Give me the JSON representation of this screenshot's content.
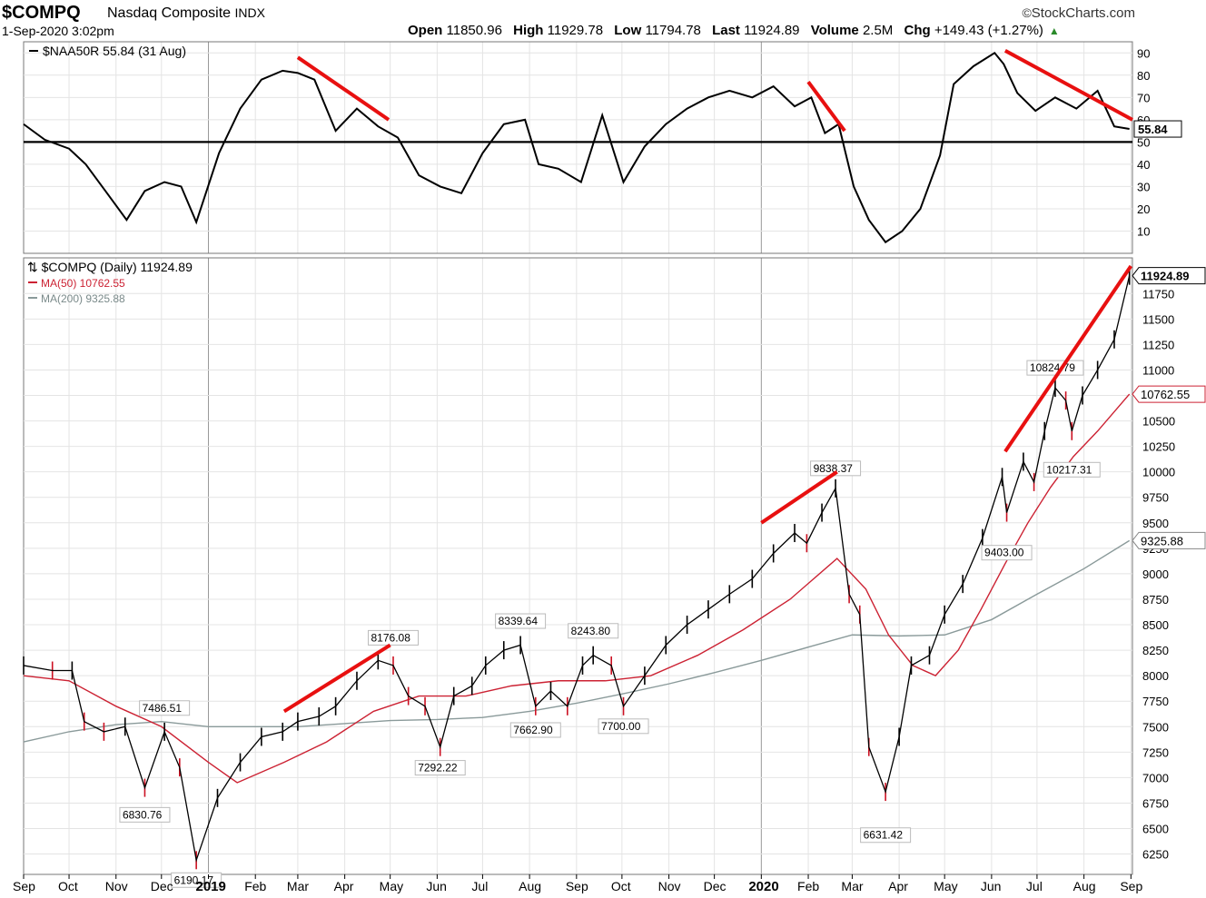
{
  "header": {
    "symbol": "$COMPQ",
    "name": "Nasdaq Composite",
    "exchange": "INDX",
    "timestamp": "1-Sep-2020 3:02pm",
    "brand": "StockCharts.com",
    "open_label": "Open",
    "open": "11850.96",
    "high_label": "High",
    "high": "11929.78",
    "low_label": "Low",
    "low": "11794.78",
    "last_label": "Last",
    "last": "11924.89",
    "volume_label": "Volume",
    "volume": "2.5M",
    "chg_label": "Chg",
    "chg": "+149.43 (+1.27%)"
  },
  "chart_data": [
    {
      "type": "line",
      "title": "$NAA50R 55.84 (31 Aug)",
      "ylim": [
        0,
        95
      ],
      "yticks": [
        10,
        20,
        30,
        40,
        50,
        60,
        70,
        80,
        90
      ],
      "reference_line": 50,
      "last_value": "55.84",
      "grid": true,
      "x": [
        "2018-09-01",
        "2018-09-15",
        "2018-10-01",
        "2018-10-12",
        "2018-10-25",
        "2018-11-08",
        "2018-11-20",
        "2018-12-03",
        "2018-12-14",
        "2018-12-24",
        "2019-01-08",
        "2019-01-22",
        "2019-02-05",
        "2019-02-19",
        "2019-03-01",
        "2019-03-12",
        "2019-03-26",
        "2019-04-09",
        "2019-04-23",
        "2019-05-06",
        "2019-05-20",
        "2019-06-03",
        "2019-06-17",
        "2019-07-01",
        "2019-07-15",
        "2019-07-29",
        "2019-08-07",
        "2019-08-20",
        "2019-09-04",
        "2019-09-18",
        "2019-10-02",
        "2019-10-16",
        "2019-10-30",
        "2019-11-13",
        "2019-11-27",
        "2019-12-11",
        "2019-12-26",
        "2020-01-09",
        "2020-01-23",
        "2020-02-03",
        "2020-02-12",
        "2020-02-21",
        "2020-03-02",
        "2020-03-12",
        "2020-03-23",
        "2020-04-03",
        "2020-04-15",
        "2020-04-28",
        "2020-05-07",
        "2020-05-20",
        "2020-06-03",
        "2020-06-09",
        "2020-06-18",
        "2020-06-30",
        "2020-07-13",
        "2020-07-27",
        "2020-08-10",
        "2020-08-21",
        "2020-08-31"
      ],
      "values": [
        58,
        51,
        47,
        40,
        28,
        15,
        28,
        32,
        30,
        14,
        45,
        65,
        78,
        82,
        81,
        78,
        55,
        65,
        57,
        52,
        35,
        30,
        27,
        45,
        58,
        60,
        40,
        38,
        32,
        62,
        32,
        48,
        58,
        65,
        70,
        73,
        70,
        75,
        66,
        70,
        54,
        58,
        30,
        15,
        5,
        10,
        20,
        44,
        76,
        84,
        90,
        85,
        72,
        64,
        70,
        65,
        73,
        57,
        55.84
      ]
    },
    {
      "type": "line",
      "title": "$COMPQ (Daily) 11924.89",
      "ylim": [
        6050,
        12100
      ],
      "yticks": [
        6250,
        6500,
        6750,
        7000,
        7250,
        7500,
        7750,
        8000,
        8250,
        8500,
        8750,
        9000,
        9250,
        9500,
        9750,
        10000,
        10250,
        10500,
        10750,
        11000,
        11250,
        11500,
        11750
      ],
      "last_value": "11924.89",
      "grid": true,
      "x_month_labels": [
        "Sep",
        "Oct",
        "Nov",
        "Dec",
        "2019",
        "Feb",
        "Mar",
        "Apr",
        "May",
        "Jun",
        "Jul",
        "Aug",
        "Sep",
        "Oct",
        "Nov",
        "Dec",
        "2020",
        "Feb",
        "Mar",
        "Apr",
        "May",
        "Jun",
        "Jul",
        "Aug",
        "Sep"
      ],
      "series": [
        {
          "name": "$COMPQ",
          "color": "#000000",
          "x": [
            "2018-09-01",
            "2018-09-20",
            "2018-10-03",
            "2018-10-11",
            "2018-10-24",
            "2018-11-07",
            "2018-11-20",
            "2018-12-03",
            "2018-12-13",
            "2018-12-24",
            "2019-01-07",
            "2019-01-22",
            "2019-02-05",
            "2019-02-19",
            "2019-03-01",
            "2019-03-15",
            "2019-03-26",
            "2019-04-09",
            "2019-04-23",
            "2019-05-03",
            "2019-05-13",
            "2019-05-24",
            "2019-06-03",
            "2019-06-12",
            "2019-06-24",
            "2019-07-03",
            "2019-07-15",
            "2019-07-26",
            "2019-08-05",
            "2019-08-15",
            "2019-08-26",
            "2019-09-05",
            "2019-09-12",
            "2019-09-24",
            "2019-10-02",
            "2019-10-16",
            "2019-10-30",
            "2019-11-13",
            "2019-11-27",
            "2019-12-11",
            "2019-12-26",
            "2020-01-09",
            "2020-01-23",
            "2020-01-31",
            "2020-02-10",
            "2020-02-19",
            "2020-02-28",
            "2020-03-06",
            "2020-03-12",
            "2020-03-23",
            "2020-04-01",
            "2020-04-09",
            "2020-04-21",
            "2020-05-01",
            "2020-05-13",
            "2020-05-26",
            "2020-06-08",
            "2020-06-11",
            "2020-06-22",
            "2020-06-29",
            "2020-07-06",
            "2020-07-13",
            "2020-07-20",
            "2020-07-24",
            "2020-07-31",
            "2020-08-10",
            "2020-08-21",
            "2020-08-31"
          ],
          "values": [
            8100,
            8050,
            8050,
            7550,
            7450,
            7500,
            6900,
            7450,
            7100,
            6190,
            6800,
            7150,
            7400,
            7450,
            7550,
            7600,
            7700,
            7950,
            8150,
            8100,
            7800,
            7700,
            7300,
            7800,
            7900,
            8100,
            8250,
            8300,
            7700,
            7850,
            7700,
            8100,
            8200,
            8100,
            7700,
            8000,
            8300,
            8500,
            8650,
            8800,
            8950,
            9200,
            9400,
            9300,
            9600,
            9838.37,
            8800,
            8600,
            7300,
            6860,
            7400,
            8100,
            8200,
            8600,
            8900,
            9350,
            9950,
            9600,
            10100,
            9900,
            10400,
            10824.79,
            10700,
            10400,
            10750,
            11000,
            11300,
            11924.89
          ]
        },
        {
          "name": "MA(50) 10762.55",
          "color": "#cc2233",
          "x": [
            "2018-09-01",
            "2018-10-01",
            "2018-11-01",
            "2018-12-01",
            "2019-01-01",
            "2019-01-20",
            "2019-02-20",
            "2019-03-20",
            "2019-04-20",
            "2019-05-20",
            "2019-06-20",
            "2019-07-20",
            "2019-08-20",
            "2019-09-20",
            "2019-10-20",
            "2019-11-20",
            "2019-12-20",
            "2020-01-20",
            "2020-02-20",
            "2020-03-10",
            "2020-03-25",
            "2020-04-10",
            "2020-04-25",
            "2020-05-10",
            "2020-05-25",
            "2020-06-10",
            "2020-06-25",
            "2020-07-10",
            "2020-07-25",
            "2020-08-10",
            "2020-08-31"
          ],
          "values": [
            8000,
            7950,
            7700,
            7500,
            7150,
            6950,
            7150,
            7350,
            7650,
            7800,
            7800,
            7900,
            7950,
            7950,
            8000,
            8200,
            8450,
            8750,
            9150,
            8850,
            8400,
            8100,
            8000,
            8250,
            8650,
            9100,
            9500,
            9850,
            10150,
            10400,
            10762.55
          ]
        },
        {
          "name": "MA(200) 9325.88",
          "color": "#8a9a9a",
          "x": [
            "2018-09-01",
            "2018-10-01",
            "2018-11-01",
            "2018-12-01",
            "2019-01-01",
            "2019-02-01",
            "2019-03-01",
            "2019-04-01",
            "2019-05-01",
            "2019-06-01",
            "2019-07-01",
            "2019-08-01",
            "2019-09-01",
            "2019-10-01",
            "2019-11-01",
            "2019-12-01",
            "2020-01-01",
            "2020-02-01",
            "2020-03-01",
            "2020-04-01",
            "2020-05-01",
            "2020-06-01",
            "2020-07-01",
            "2020-08-01",
            "2020-08-31"
          ],
          "values": [
            7350,
            7450,
            7520,
            7550,
            7500,
            7500,
            7500,
            7530,
            7560,
            7570,
            7590,
            7650,
            7730,
            7820,
            7920,
            8030,
            8150,
            8280,
            8400,
            8390,
            8400,
            8550,
            8800,
            9050,
            9325.88
          ]
        }
      ],
      "annotations": [
        {
          "label": "7486.51",
          "x": "2018-12-03",
          "value": 7486.51
        },
        {
          "label": "6830.76",
          "x": "2018-11-20",
          "value": 6830.76
        },
        {
          "label": "6190.17",
          "x": "2018-12-24",
          "value": 6190.17
        },
        {
          "label": "8176.08",
          "x": "2019-05-03",
          "value": 8176.08
        },
        {
          "label": "7292.22",
          "x": "2019-06-03",
          "value": 7292.22
        },
        {
          "label": "8339.64",
          "x": "2019-07-26",
          "value": 8339.64
        },
        {
          "label": "7662.90",
          "x": "2019-08-05",
          "value": 7662.9
        },
        {
          "label": "8243.80",
          "x": "2019-09-12",
          "value": 8243.8
        },
        {
          "label": "7700.00",
          "x": "2019-10-02",
          "value": 7700.0
        },
        {
          "label": "9838.37",
          "x": "2020-02-19",
          "value": 9838.37
        },
        {
          "label": "6631.42",
          "x": "2020-03-23",
          "value": 6631.42
        },
        {
          "label": "9403.00",
          "x": "2020-06-11",
          "value": 9403.0
        },
        {
          "label": "10824.79",
          "x": "2020-07-13",
          "value": 10824.79
        },
        {
          "label": "10217.31",
          "x": "2020-07-24",
          "value": 10217.31
        }
      ]
    }
  ],
  "trendlines": {
    "color": "#e81010",
    "upper": [
      {
        "x1": "2019-03-01",
        "y1": 88,
        "x2": "2019-04-30",
        "y2": 60
      },
      {
        "x1": "2020-02-01",
        "y1": 77,
        "x2": "2020-02-25",
        "y2": 55
      },
      {
        "x1": "2020-06-10",
        "y1": 91,
        "x2": "2020-09-02",
        "y2": 60
      }
    ],
    "lower": [
      {
        "x1": "2019-02-20",
        "y1": 7650,
        "x2": "2019-05-01",
        "y2": 8300
      },
      {
        "x1": "2020-01-01",
        "y1": 9500,
        "x2": "2020-02-20",
        "y2": 10000
      },
      {
        "x1": "2020-06-10",
        "y1": 10200,
        "x2": "2020-09-01",
        "y2": 12020
      }
    ]
  }
}
